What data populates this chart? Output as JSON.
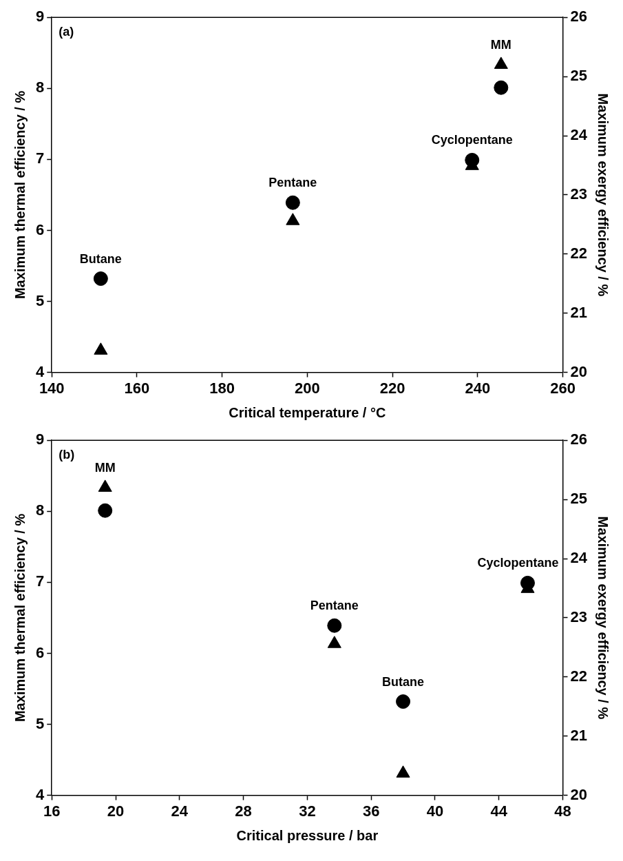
{
  "chart_data": [
    {
      "type": "scatter",
      "xlabel": "Critical temperature / °C",
      "ylabel": "Maximum thermal efficiency / %",
      "y2label": "Maximum exergy efficiency / %",
      "x": [
        151.5,
        196.6,
        238.7,
        245.5
      ],
      "xlim": [
        140,
        260
      ],
      "xticks": [
        140,
        160,
        180,
        200,
        220,
        240,
        260
      ],
      "ylim": [
        4,
        9
      ],
      "yticks": [
        4,
        5,
        6,
        7,
        8,
        9
      ],
      "y2lim": [
        20,
        26
      ],
      "y2ticks": [
        20,
        21,
        22,
        23,
        24,
        25,
        26
      ],
      "grid": false,
      "series": [
        {
          "color": "#000000",
          "marker": "circle",
          "values": [
            5.32,
            6.39,
            6.99,
            8.01
          ]
        },
        {
          "color": "#000000",
          "marker": "triangle",
          "axis": "y2",
          "values": [
            20.37,
            22.56,
            23.49,
            25.2
          ]
        }
      ],
      "annotations": [
        "(a)",
        {
          "text": "Butane",
          "x": 151.5,
          "y": 5.32
        },
        {
          "text": "Pentane",
          "x": 196.6,
          "y": 6.39
        },
        {
          "text": "Cyclopentane",
          "x": 238.7,
          "y": 6.99
        },
        {
          "text": "MM",
          "x": 245.5,
          "y": 8.01
        }
      ]
    },
    {
      "type": "scatter",
      "xlabel": "Critical pressure / bar",
      "ylabel": "Maximum thermal efficiency / %",
      "y2label": "Maximum exergy efficiency / %",
      "x": [
        38.0,
        33.7,
        45.8,
        19.34
      ],
      "xlim": [
        16,
        48
      ],
      "xticks": [
        16,
        20,
        24,
        28,
        32,
        36,
        40,
        44,
        48
      ],
      "ylim": [
        4,
        9
      ],
      "yticks": [
        4,
        5,
        6,
        7,
        8,
        9
      ],
      "y2lim": [
        20,
        26
      ],
      "y2ticks": [
        20,
        21,
        22,
        23,
        24,
        25,
        26
      ],
      "grid": false,
      "series": [
        {
          "color": "#000000",
          "marker": "circle",
          "values": [
            5.32,
            6.39,
            6.99,
            8.01
          ]
        },
        {
          "color": "#000000",
          "marker": "triangle",
          "axis": "y2",
          "values": [
            20.37,
            22.56,
            23.49,
            25.2
          ]
        }
      ],
      "annotations": [
        "(b)",
        {
          "text": "MM",
          "x": 19.34,
          "y": 8.01
        },
        {
          "text": "Pentane",
          "x": 33.7,
          "y": 6.39
        },
        {
          "text": "Butane",
          "x": 38.0,
          "y": 5.32
        },
        {
          "text": "Cyclopentane",
          "x": 45.8,
          "y": 6.99
        }
      ]
    }
  ]
}
